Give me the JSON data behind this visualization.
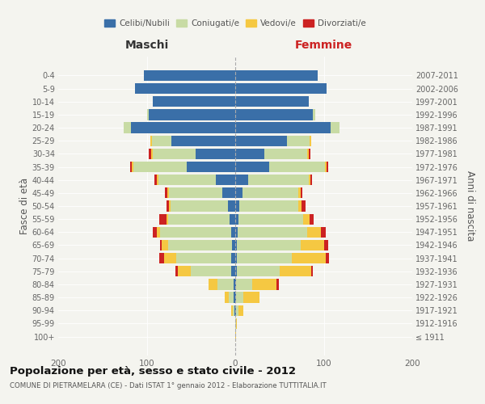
{
  "age_groups": [
    "100+",
    "95-99",
    "90-94",
    "85-89",
    "80-84",
    "75-79",
    "70-74",
    "65-69",
    "60-64",
    "55-59",
    "50-54",
    "45-49",
    "40-44",
    "35-39",
    "30-34",
    "25-29",
    "20-24",
    "15-19",
    "10-14",
    "5-9",
    "0-4"
  ],
  "birth_years": [
    "≤ 1911",
    "1912-1916",
    "1917-1921",
    "1922-1926",
    "1927-1931",
    "1932-1936",
    "1937-1941",
    "1942-1946",
    "1947-1951",
    "1952-1956",
    "1957-1961",
    "1962-1966",
    "1967-1971",
    "1972-1976",
    "1977-1981",
    "1982-1986",
    "1987-1991",
    "1992-1996",
    "1997-2001",
    "2002-2006",
    "2007-2011"
  ],
  "male_celibe": [
    0,
    0,
    1,
    2,
    2,
    5,
    5,
    4,
    5,
    6,
    8,
    15,
    22,
    55,
    45,
    72,
    118,
    98,
    93,
    113,
    103
  ],
  "male_coniugato": [
    0,
    0,
    2,
    5,
    18,
    45,
    62,
    72,
    80,
    70,
    65,
    60,
    65,
    60,
    48,
    22,
    8,
    2,
    0,
    0,
    0
  ],
  "male_vedovo": [
    0,
    0,
    2,
    5,
    10,
    15,
    13,
    7,
    4,
    2,
    2,
    2,
    2,
    2,
    2,
    2,
    0,
    0,
    0,
    0,
    0
  ],
  "male_divorziato": [
    0,
    0,
    0,
    0,
    0,
    3,
    6,
    2,
    4,
    8,
    3,
    2,
    2,
    2,
    3,
    0,
    0,
    0,
    0,
    0,
    0
  ],
  "female_celibe": [
    0,
    0,
    1,
    1,
    1,
    2,
    2,
    2,
    3,
    4,
    5,
    8,
    15,
    38,
    33,
    58,
    108,
    88,
    83,
    103,
    93
  ],
  "female_coniugato": [
    0,
    1,
    3,
    8,
    18,
    48,
    62,
    72,
    78,
    73,
    66,
    63,
    68,
    63,
    48,
    26,
    10,
    2,
    0,
    0,
    0
  ],
  "female_vedovo": [
    1,
    1,
    5,
    18,
    28,
    36,
    38,
    26,
    16,
    7,
    4,
    3,
    2,
    2,
    2,
    2,
    0,
    0,
    0,
    0,
    0
  ],
  "female_divorziato": [
    0,
    0,
    0,
    0,
    2,
    2,
    4,
    5,
    5,
    5,
    4,
    2,
    2,
    2,
    2,
    0,
    0,
    0,
    0,
    0,
    0
  ],
  "colors": {
    "celibe": "#3a6fa8",
    "coniugato": "#c8dba4",
    "vedovo": "#f5c842",
    "divorziato": "#cc2222"
  },
  "title": "Popolazione per età, sesso e stato civile - 2012",
  "subtitle": "COMUNE DI PIETRAMELARA (CE) - Dati ISTAT 1° gennaio 2012 - Elaborazione TUTTITALIA.IT",
  "xlabel_left": "Maschi",
  "xlabel_right": "Femmine",
  "ylabel_left": "Fasce di età",
  "ylabel_right": "Anni di nascita",
  "xlim": 200,
  "bg_color": "#f4f4ef",
  "bar_height": 0.82
}
